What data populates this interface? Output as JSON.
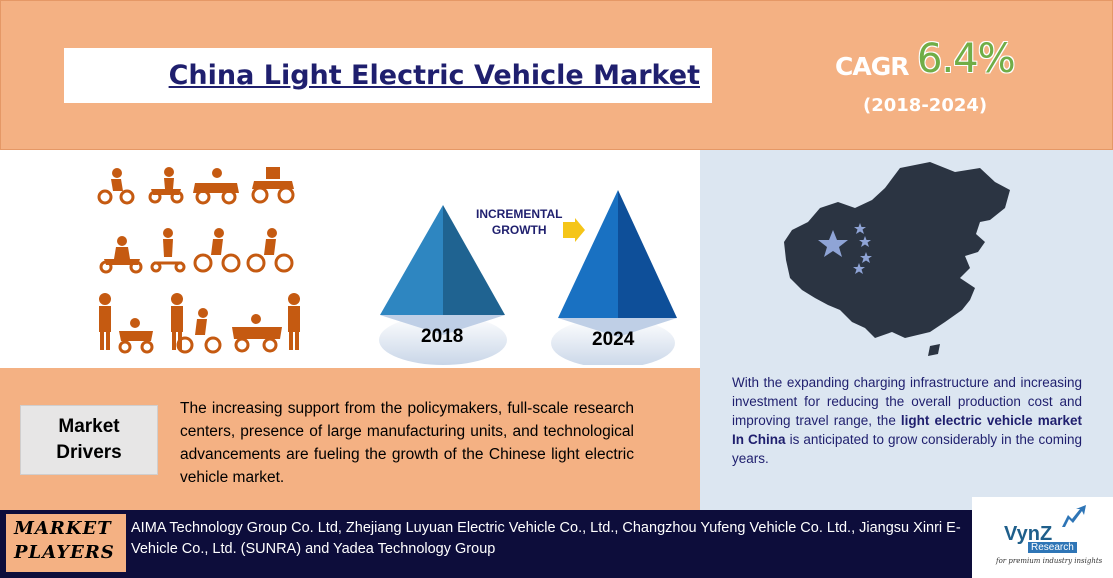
{
  "header": {
    "title": "China Light Electric Vehicle Market",
    "cagr_label": "CAGR",
    "cagr_value": "6.4%",
    "cagr_period": "(2018-2024)"
  },
  "growth": {
    "start_year": "2018",
    "end_year": "2024",
    "arrow_label": "INCREMENTAL\nGROWTH"
  },
  "summary": {
    "text_before": "With the expanding charging infrastructure and increasing investment for reducing the overall production cost and improving travel range, the ",
    "highlight": "light electric vehicle market In China",
    "text_after": " is anticipated to grow considerably in the coming years."
  },
  "drivers": {
    "label": "Market\nDrivers",
    "text": "The increasing support from the policymakers, full-scale research centers, presence of large manufacturing units, and technological advancements are fueling the growth of the Chinese light electric vehicle market."
  },
  "players": {
    "label": "MARKET\nPLAYERS",
    "text": "AIMA Technology Group Co. Ltd, Zhejiang Luyuan Electric Vehicle Co., Ltd., Changzhou Yufeng Vehicle Co. Ltd., Jiangsu Xinri E-Vehicle Co., Ltd. (SUNRA) and Yadea Technology Group"
  },
  "logo": {
    "name": "VynZ",
    "sub": "Research",
    "tagline": "for premium industry insights"
  },
  "colors": {
    "banner": "#f4b183",
    "title_text": "#1f1f6e",
    "cagr_value": "#70ad47",
    "bottom_bar": "#0d0d3b",
    "map": "#2b3442",
    "icons": "#c55a11"
  },
  "icons": [
    "balance-bike-icon",
    "ride-on-car-icon",
    "kart-icon",
    "quad-bike-icon",
    "kick-scooter-icon",
    "scooter-icon",
    "bicycle-icon",
    "china-map-icon",
    "star-icon",
    "arrow-right-icon"
  ]
}
